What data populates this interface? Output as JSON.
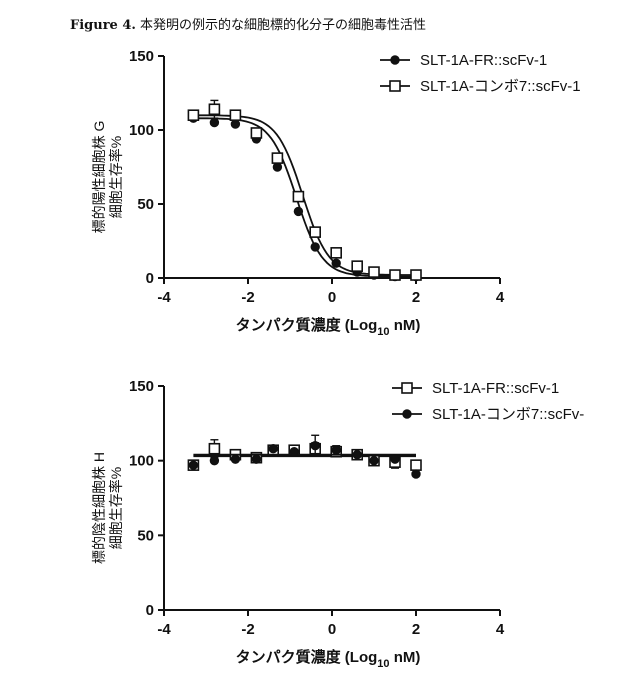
{
  "figure": {
    "number": "Figure 4.",
    "caption": "本発明の例示的な細胞標的化分子の細胞毒性活性"
  },
  "chart_data": [
    {
      "type": "scatter",
      "panel": "G",
      "ylabel": [
        "標的陽性細胞株 G",
        "細胞生存率%"
      ],
      "xlabel": "タンパク質濃度 (Log",
      "xlabel_sub": "10",
      "xlabel_suffix": " nM)",
      "xlim": [
        -4,
        4
      ],
      "ylim": [
        0,
        150
      ],
      "xticks": [
        -4,
        -2,
        0,
        2,
        4
      ],
      "xtick_labels": [
        "-4",
        "-2",
        "0",
        "2",
        "4"
      ],
      "yticks": [
        0,
        50,
        100,
        150
      ],
      "ytick_labels": [
        "0",
        "50",
        "100",
        "150"
      ],
      "x_axis_at": 0,
      "legend_position": "top-right",
      "series": [
        {
          "name": "SLT-1A-FR::scFv-1",
          "marker": "filled-circle",
          "color": "#111111",
          "points": [
            {
              "x": -3.3,
              "y": 108
            },
            {
              "x": -2.8,
              "y": 105
            },
            {
              "x": -2.3,
              "y": 104
            },
            {
              "x": -1.8,
              "y": 94
            },
            {
              "x": -1.3,
              "y": 75
            },
            {
              "x": -0.8,
              "y": 45
            },
            {
              "x": -0.4,
              "y": 21
            },
            {
              "x": 0.1,
              "y": 10
            },
            {
              "x": 0.6,
              "y": 4
            },
            {
              "x": 1.0,
              "y": 2
            },
            {
              "x": 1.5,
              "y": 1
            },
            {
              "x": 2.0,
              "y": 1
            }
          ],
          "fit": {
            "top": 108,
            "bottom": 1,
            "log_ic50": -0.85,
            "hill": -1.4
          }
        },
        {
          "name": "SLT-1A-コンボ7::scFv-1",
          "marker": "open-square",
          "color": "#111111",
          "points": [
            {
              "x": -3.3,
              "y": 110,
              "err": 3
            },
            {
              "x": -2.8,
              "y": 114,
              "err": 6
            },
            {
              "x": -2.3,
              "y": 110,
              "err": 3
            },
            {
              "x": -1.8,
              "y": 98,
              "err": 2
            },
            {
              "x": -1.3,
              "y": 81,
              "err": 2
            },
            {
              "x": -0.8,
              "y": 55,
              "err": 2
            },
            {
              "x": -0.4,
              "y": 31,
              "err": 2
            },
            {
              "x": 0.1,
              "y": 17,
              "err": 2
            },
            {
              "x": 0.6,
              "y": 8
            },
            {
              "x": 1.0,
              "y": 4
            },
            {
              "x": 1.5,
              "y": 2
            },
            {
              "x": 2.0,
              "y": 2
            }
          ],
          "fit": {
            "top": 110,
            "bottom": 2,
            "log_ic50": -0.7,
            "hill": -1.4
          }
        }
      ]
    },
    {
      "type": "scatter",
      "panel": "H",
      "ylabel": [
        "標的陰性細胞株 H",
        "細胞生存率%"
      ],
      "xlabel": "タンパク質濃度 (Log",
      "xlabel_sub": "10",
      "xlabel_suffix": " nM)",
      "xlim": [
        -4,
        4
      ],
      "ylim": [
        0,
        150
      ],
      "xticks": [
        -4,
        -2,
        0,
        2,
        4
      ],
      "xtick_labels": [
        "-4",
        "-2",
        "0",
        "2",
        "4"
      ],
      "yticks": [
        0,
        50,
        100,
        150
      ],
      "ytick_labels": [
        "0",
        "50",
        "100",
        "150"
      ],
      "x_axis_at": 0,
      "legend_position": "top-right",
      "series": [
        {
          "name": "SLT-1A-FR::scFv-1",
          "marker": "open-square",
          "color": "#111111",
          "points": [
            {
              "x": -3.3,
              "y": 97
            },
            {
              "x": -2.8,
              "y": 108,
              "err": 6
            },
            {
              "x": -2.3,
              "y": 104,
              "err": 3
            },
            {
              "x": -1.8,
              "y": 102,
              "err": 3
            },
            {
              "x": -1.4,
              "y": 107,
              "err": 3
            },
            {
              "x": -0.9,
              "y": 107,
              "err": 3
            },
            {
              "x": -0.4,
              "y": 108,
              "err": 4
            },
            {
              "x": 0.1,
              "y": 106,
              "err": 3
            },
            {
              "x": 0.6,
              "y": 104,
              "err": 3
            },
            {
              "x": 1.0,
              "y": 100
            },
            {
              "x": 1.5,
              "y": 99,
              "err": 4
            },
            {
              "x": 2.0,
              "y": 97
            }
          ],
          "fit": {
            "top": 103,
            "bottom": 103,
            "log_ic50": 0,
            "hill": -1
          }
        },
        {
          "name": "SLT-1A-コンボ7::scFv-",
          "marker": "filled-circle",
          "color": "#111111",
          "points": [
            {
              "x": -3.3,
              "y": 97
            },
            {
              "x": -2.8,
              "y": 100
            },
            {
              "x": -2.3,
              "y": 101
            },
            {
              "x": -1.8,
              "y": 101
            },
            {
              "x": -1.4,
              "y": 108
            },
            {
              "x": -0.9,
              "y": 106
            },
            {
              "x": -0.4,
              "y": 110,
              "err": 7
            },
            {
              "x": 0.1,
              "y": 107,
              "err": 3
            },
            {
              "x": 0.6,
              "y": 104
            },
            {
              "x": 1.0,
              "y": 100
            },
            {
              "x": 1.5,
              "y": 101
            },
            {
              "x": 2.0,
              "y": 91
            }
          ],
          "fit": {
            "top": 104,
            "bottom": 104,
            "log_ic50": 0,
            "hill": -1
          }
        }
      ]
    }
  ]
}
